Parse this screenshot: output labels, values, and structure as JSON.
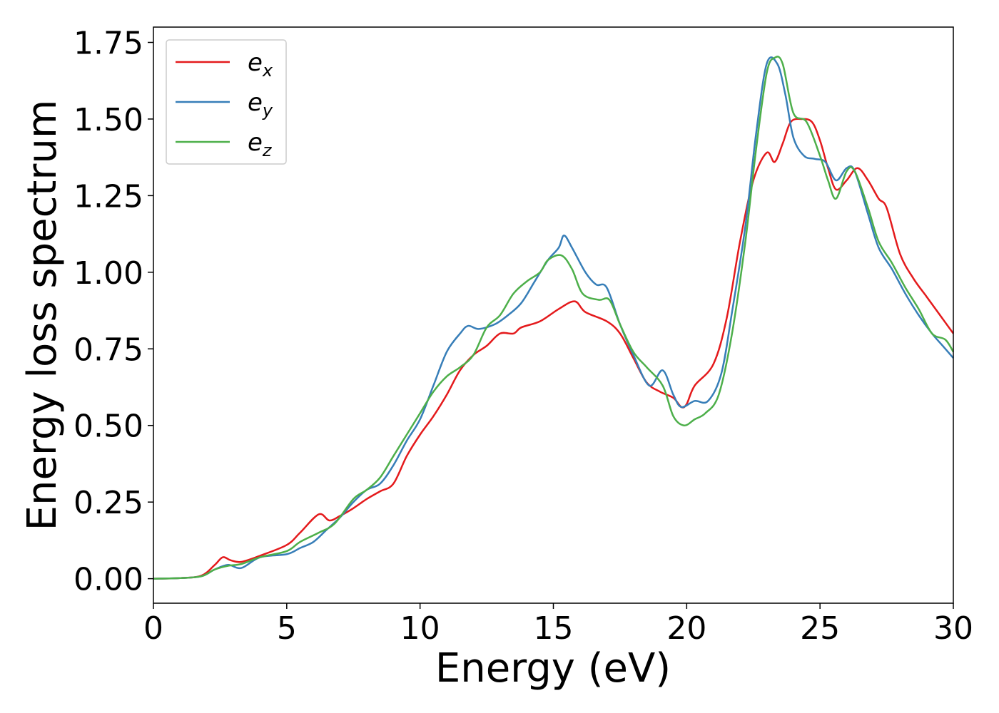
{
  "chart_data": {
    "type": "line",
    "title": "",
    "xlabel": "Energy (eV)",
    "ylabel": "Energy loss spectrum",
    "xlim": [
      0,
      30
    ],
    "ylim": [
      -0.08,
      1.8
    ],
    "xticks": [
      0,
      5,
      10,
      15,
      20,
      25,
      30
    ],
    "xtick_labels": [
      "0",
      "5",
      "10",
      "15",
      "20",
      "25",
      "30"
    ],
    "yticks": [
      0.0,
      0.25,
      0.5,
      0.75,
      1.0,
      1.25,
      1.5,
      1.75
    ],
    "ytick_labels": [
      "0.00",
      "0.25",
      "0.50",
      "0.75",
      "1.00",
      "1.25",
      "1.50",
      "1.75"
    ],
    "grid": false,
    "legend_position": "top-left",
    "series": [
      {
        "name": "e_x",
        "label_base": "e",
        "label_sub": "x",
        "color": "#e41a1c",
        "points": [
          [
            0,
            0
          ],
          [
            1,
            0.002
          ],
          [
            1.8,
            0.01
          ],
          [
            2.3,
            0.045
          ],
          [
            2.6,
            0.07
          ],
          [
            2.9,
            0.06
          ],
          [
            3.3,
            0.055
          ],
          [
            4,
            0.075
          ],
          [
            5,
            0.11
          ],
          [
            5.5,
            0.15
          ],
          [
            6.2,
            0.21
          ],
          [
            6.6,
            0.19
          ],
          [
            7,
            0.205
          ],
          [
            7.5,
            0.23
          ],
          [
            8,
            0.26
          ],
          [
            8.5,
            0.285
          ],
          [
            9,
            0.31
          ],
          [
            9.5,
            0.4
          ],
          [
            10,
            0.47
          ],
          [
            10.5,
            0.53
          ],
          [
            11,
            0.6
          ],
          [
            11.5,
            0.68
          ],
          [
            12,
            0.73
          ],
          [
            12.5,
            0.76
          ],
          [
            13,
            0.8
          ],
          [
            13.5,
            0.8
          ],
          [
            13.8,
            0.82
          ],
          [
            14.5,
            0.84
          ],
          [
            15.2,
            0.88
          ],
          [
            15.8,
            0.905
          ],
          [
            16.2,
            0.87
          ],
          [
            17,
            0.84
          ],
          [
            17.5,
            0.8
          ],
          [
            18,
            0.72
          ],
          [
            18.5,
            0.64
          ],
          [
            19,
            0.61
          ],
          [
            19.5,
            0.59
          ],
          [
            19.8,
            0.56
          ],
          [
            20,
            0.57
          ],
          [
            20.3,
            0.63
          ],
          [
            21,
            0.7
          ],
          [
            21.5,
            0.85
          ],
          [
            22,
            1.1
          ],
          [
            22.5,
            1.3
          ],
          [
            23,
            1.39
          ],
          [
            23.3,
            1.36
          ],
          [
            23.6,
            1.42
          ],
          [
            23.9,
            1.49
          ],
          [
            24.3,
            1.5
          ],
          [
            24.7,
            1.49
          ],
          [
            25,
            1.43
          ],
          [
            25.3,
            1.34
          ],
          [
            25.6,
            1.27
          ],
          [
            26,
            1.3
          ],
          [
            26.4,
            1.34
          ],
          [
            26.8,
            1.3
          ],
          [
            27.2,
            1.24
          ],
          [
            27.5,
            1.21
          ],
          [
            28,
            1.06
          ],
          [
            28.5,
            0.98
          ],
          [
            29,
            0.92
          ],
          [
            29.5,
            0.86
          ],
          [
            30,
            0.8
          ]
        ]
      },
      {
        "name": "e_y",
        "label_base": "e",
        "label_sub": "y",
        "color": "#377eb8",
        "points": [
          [
            0,
            0
          ],
          [
            1,
            0.002
          ],
          [
            1.8,
            0.008
          ],
          [
            2.3,
            0.03
          ],
          [
            2.8,
            0.045
          ],
          [
            3.3,
            0.035
          ],
          [
            4,
            0.07
          ],
          [
            5,
            0.08
          ],
          [
            5.5,
            0.1
          ],
          [
            6,
            0.12
          ],
          [
            6.5,
            0.16
          ],
          [
            7,
            0.2
          ],
          [
            7.5,
            0.25
          ],
          [
            8,
            0.29
          ],
          [
            8.5,
            0.31
          ],
          [
            9,
            0.37
          ],
          [
            9.5,
            0.45
          ],
          [
            10,
            0.52
          ],
          [
            10.5,
            0.63
          ],
          [
            11,
            0.74
          ],
          [
            11.5,
            0.8
          ],
          [
            11.8,
            0.825
          ],
          [
            12.2,
            0.815
          ],
          [
            12.8,
            0.83
          ],
          [
            13.3,
            0.86
          ],
          [
            13.8,
            0.9
          ],
          [
            14.3,
            0.97
          ],
          [
            14.8,
            1.04
          ],
          [
            15.2,
            1.08
          ],
          [
            15.4,
            1.12
          ],
          [
            15.7,
            1.08
          ],
          [
            16.2,
            1
          ],
          [
            16.6,
            0.96
          ],
          [
            17,
            0.95
          ],
          [
            17.5,
            0.83
          ],
          [
            18,
            0.73
          ],
          [
            18.6,
            0.63
          ],
          [
            19.1,
            0.68
          ],
          [
            19.5,
            0.6
          ],
          [
            19.8,
            0.56
          ],
          [
            20.3,
            0.58
          ],
          [
            20.8,
            0.58
          ],
          [
            21.3,
            0.67
          ],
          [
            21.7,
            0.87
          ],
          [
            22.2,
            1.15
          ],
          [
            22.6,
            1.45
          ],
          [
            23,
            1.68
          ],
          [
            23.4,
            1.68
          ],
          [
            23.7,
            1.58
          ],
          [
            24,
            1.44
          ],
          [
            24.4,
            1.38
          ],
          [
            24.8,
            1.37
          ],
          [
            25.2,
            1.36
          ],
          [
            25.6,
            1.3
          ],
          [
            26,
            1.34
          ],
          [
            26.3,
            1.33
          ],
          [
            26.8,
            1.19
          ],
          [
            27.2,
            1.08
          ],
          [
            27.7,
            1.01
          ],
          [
            28.2,
            0.93
          ],
          [
            28.7,
            0.86
          ],
          [
            29.2,
            0.8
          ],
          [
            29.6,
            0.76
          ],
          [
            30,
            0.72
          ]
        ]
      },
      {
        "name": "e_z",
        "label_base": "e",
        "label_sub": "z",
        "color": "#4daf4a",
        "points": [
          [
            0,
            0
          ],
          [
            1,
            0.002
          ],
          [
            1.8,
            0.008
          ],
          [
            2.3,
            0.03
          ],
          [
            2.8,
            0.042
          ],
          [
            3.3,
            0.048
          ],
          [
            4,
            0.07
          ],
          [
            5,
            0.09
          ],
          [
            5.5,
            0.12
          ],
          [
            6.2,
            0.15
          ],
          [
            6.8,
            0.18
          ],
          [
            7.5,
            0.26
          ],
          [
            8,
            0.29
          ],
          [
            8.5,
            0.33
          ],
          [
            9,
            0.4
          ],
          [
            9.5,
            0.47
          ],
          [
            10,
            0.54
          ],
          [
            10.5,
            0.61
          ],
          [
            11,
            0.66
          ],
          [
            11.5,
            0.69
          ],
          [
            12,
            0.73
          ],
          [
            12.5,
            0.82
          ],
          [
            13,
            0.86
          ],
          [
            13.5,
            0.93
          ],
          [
            14,
            0.97
          ],
          [
            14.5,
            1
          ],
          [
            14.8,
            1.04
          ],
          [
            15.3,
            1.055
          ],
          [
            15.7,
            1.01
          ],
          [
            16.1,
            0.93
          ],
          [
            16.7,
            0.91
          ],
          [
            17.1,
            0.91
          ],
          [
            17.5,
            0.83
          ],
          [
            18,
            0.74
          ],
          [
            18.5,
            0.69
          ],
          [
            19.1,
            0.63
          ],
          [
            19.5,
            0.53
          ],
          [
            19.9,
            0.5
          ],
          [
            20.3,
            0.52
          ],
          [
            20.7,
            0.54
          ],
          [
            21.2,
            0.6
          ],
          [
            21.7,
            0.8
          ],
          [
            22.2,
            1.1
          ],
          [
            22.6,
            1.4
          ],
          [
            23,
            1.65
          ],
          [
            23.3,
            1.7
          ],
          [
            23.6,
            1.68
          ],
          [
            24,
            1.52
          ],
          [
            24.5,
            1.49
          ],
          [
            25,
            1.38
          ],
          [
            25.3,
            1.3
          ],
          [
            25.6,
            1.24
          ],
          [
            26,
            1.33
          ],
          [
            26.3,
            1.33
          ],
          [
            26.8,
            1.21
          ],
          [
            27.2,
            1.1
          ],
          [
            27.7,
            1.03
          ],
          [
            28.2,
            0.95
          ],
          [
            28.7,
            0.88
          ],
          [
            29.2,
            0.8
          ],
          [
            29.7,
            0.78
          ],
          [
            30,
            0.74
          ]
        ]
      }
    ]
  }
}
